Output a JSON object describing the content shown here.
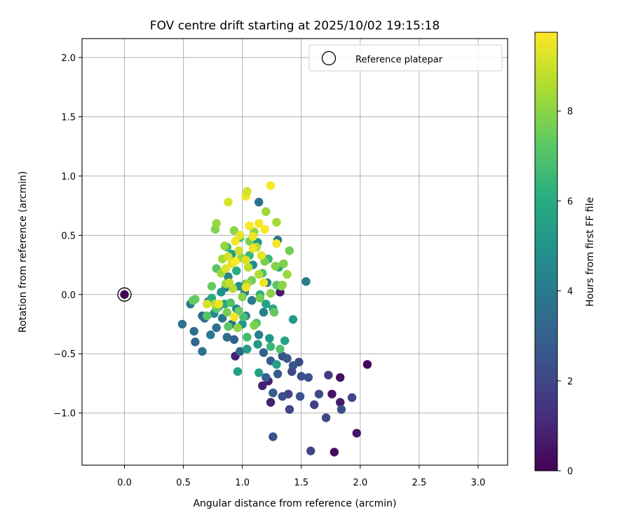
{
  "chart_data": {
    "type": "scatter",
    "title": "FOV centre drift starting at 2025/10/02 19:15:18",
    "xlabel": "Angular distance from reference (arcmin)",
    "ylabel": "Rotation from reference (arcmin)",
    "colorbar_label": "Hours from first FF file",
    "xlim": [
      -0.36,
      3.25
    ],
    "ylim": [
      -1.44,
      2.16
    ],
    "clim": [
      0,
      9.75
    ],
    "xticks": [
      0.0,
      0.5,
      1.0,
      1.5,
      2.0,
      2.5,
      3.0
    ],
    "xtick_labels": [
      "0.0",
      "0.5",
      "1.0",
      "1.5",
      "2.0",
      "2.5",
      "3.0"
    ],
    "yticks": [
      -1.0,
      -0.5,
      0.0,
      0.5,
      1.0,
      1.5,
      2.0
    ],
    "ytick_labels": [
      "−1.0",
      "−0.5",
      "0.0",
      "0.5",
      "1.0",
      "1.5",
      "2.0"
    ],
    "cbar_ticks": [
      0,
      2,
      4,
      6,
      8
    ],
    "cbar_tick_labels": [
      "0",
      "2",
      "4",
      "6",
      "8"
    ],
    "grid": true,
    "legend": {
      "position": "top-right",
      "entries": [
        "Reference platepar"
      ]
    },
    "colormap": "viridis",
    "reference_point": {
      "x": 0.0,
      "y": 0.0,
      "hours": 0.0
    },
    "points": [
      [
        2.06,
        -0.59,
        0.05
      ],
      [
        1.78,
        -1.33,
        0.3
      ],
      [
        1.97,
        -1.17,
        0.5
      ],
      [
        1.83,
        -0.7,
        0.4
      ],
      [
        1.83,
        -0.91,
        0.6
      ],
      [
        1.76,
        -0.84,
        0.5
      ],
      [
        1.22,
        -0.73,
        0.7
      ],
      [
        1.24,
        -0.91,
        0.8
      ],
      [
        1.17,
        -0.77,
        0.9
      ],
      [
        1.32,
        0.02,
        0.6
      ],
      [
        0.94,
        -0.52,
        0.9
      ],
      [
        1.58,
        -1.32,
        1.9
      ],
      [
        1.71,
        -1.04,
        2.1
      ],
      [
        1.93,
        -0.87,
        2.0
      ],
      [
        1.65,
        -0.84,
        2.2
      ],
      [
        1.61,
        -0.93,
        1.8
      ],
      [
        1.73,
        -0.68,
        1.6
      ],
      [
        1.84,
        -0.97,
        2.3
      ],
      [
        1.26,
        -1.2,
        2.4
      ],
      [
        1.4,
        -0.97,
        2.0
      ],
      [
        1.39,
        -0.84,
        1.9
      ],
      [
        1.34,
        -0.86,
        2.3
      ],
      [
        1.5,
        -0.69,
        2.5
      ],
      [
        1.56,
        -0.7,
        2.4
      ],
      [
        1.49,
        -0.86,
        2.5
      ],
      [
        1.42,
        -0.65,
        2.1
      ],
      [
        1.48,
        -0.57,
        2.2
      ],
      [
        1.43,
        -0.6,
        2.6
      ],
      [
        1.34,
        -0.52,
        2.4
      ],
      [
        1.38,
        -0.54,
        2.7
      ],
      [
        1.3,
        -0.67,
        2.8
      ],
      [
        1.26,
        -0.83,
        2.9
      ],
      [
        1.2,
        -0.7,
        3.0
      ],
      [
        1.24,
        -0.56,
        2.8
      ],
      [
        1.18,
        -0.49,
        3.0
      ],
      [
        0.98,
        -0.48,
        3.3
      ],
      [
        0.93,
        -0.38,
        3.1
      ],
      [
        0.87,
        -0.36,
        3.4
      ],
      [
        0.91,
        -0.25,
        3.6
      ],
      [
        0.66,
        -0.48,
        3.6
      ],
      [
        0.49,
        -0.25,
        3.7
      ],
      [
        0.59,
        -0.31,
        3.5
      ],
      [
        0.6,
        -0.4,
        3.3
      ],
      [
        0.66,
        -0.18,
        3.2
      ],
      [
        0.68,
        -0.2,
        3.4
      ],
      [
        0.73,
        -0.34,
        3.9
      ],
      [
        0.78,
        -0.28,
        3.6
      ],
      [
        0.83,
        -0.2,
        3.8
      ],
      [
        0.56,
        -0.08,
        3.9
      ],
      [
        1.14,
        0.78,
        3.6
      ],
      [
        1.54,
        0.11,
        4.1
      ],
      [
        1.3,
        0.46,
        3.9
      ],
      [
        1.08,
        -0.05,
        4.0
      ],
      [
        1.02,
        0.02,
        3.8
      ],
      [
        0.86,
        0.06,
        4.2
      ],
      [
        0.95,
        -0.12,
        4.4
      ],
      [
        1.18,
        -0.15,
        4.3
      ],
      [
        1.14,
        -0.34,
        4.2
      ],
      [
        0.71,
        -0.06,
        4.0
      ],
      [
        0.76,
        -0.16,
        4.5
      ],
      [
        1.03,
        -0.18,
        4.1
      ],
      [
        1.21,
        0.1,
        4.4
      ],
      [
        0.88,
        0.15,
        4.3
      ],
      [
        1.09,
        0.25,
        4.6
      ],
      [
        0.97,
        0.07,
        4.8
      ],
      [
        0.82,
        0.02,
        4.9
      ],
      [
        1.0,
        -0.25,
        5.0
      ],
      [
        1.23,
        -0.37,
        5.1
      ],
      [
        1.13,
        -0.42,
        5.3
      ],
      [
        1.04,
        -0.46,
        5.4
      ],
      [
        0.96,
        -0.65,
        5.6
      ],
      [
        1.14,
        -0.66,
        5.5
      ],
      [
        1.29,
        -0.59,
        5.4
      ],
      [
        1.36,
        -0.39,
        5.5
      ],
      [
        1.43,
        -0.21,
        5.3
      ],
      [
        1.2,
        -0.08,
        5.6
      ],
      [
        0.8,
        -0.1,
        5.2
      ],
      [
        0.91,
        0.34,
        5.3
      ],
      [
        1.13,
        0.44,
        5.2
      ],
      [
        1.26,
        -0.12,
        5.7
      ],
      [
        1.03,
        0.09,
        5.9
      ],
      [
        0.95,
        0.2,
        6.0
      ],
      [
        1.15,
        0.0,
        6.2
      ],
      [
        0.74,
        -0.03,
        6.1
      ],
      [
        0.85,
        -0.08,
        5.8
      ],
      [
        0.92,
        0.27,
        6.3
      ],
      [
        1.06,
        0.33,
        6.5
      ],
      [
        1.22,
        0.3,
        6.4
      ],
      [
        1.31,
        0.23,
        6.0
      ],
      [
        0.98,
        0.48,
        6.6
      ],
      [
        0.87,
        0.4,
        6.4
      ],
      [
        1.04,
        -0.36,
        6.7
      ],
      [
        1.24,
        -0.44,
        6.5
      ],
      [
        1.32,
        -0.46,
        7.0
      ],
      [
        1.01,
        -0.19,
        6.8
      ],
      [
        0.9,
        -0.07,
        7.0
      ],
      [
        0.78,
        0.22,
        7.1
      ],
      [
        1.17,
        0.18,
        6.9
      ],
      [
        1.29,
        0.08,
        7.2
      ],
      [
        1.12,
        -0.24,
        7.1
      ],
      [
        0.88,
        -0.27,
        7.2
      ],
      [
        0.78,
        -0.12,
        7.3
      ],
      [
        0.7,
        -0.18,
        7.1
      ],
      [
        0.74,
        0.07,
        7.4
      ],
      [
        0.97,
        -0.14,
        7.5
      ],
      [
        1.08,
        0.12,
        7.6
      ],
      [
        1.27,
        -0.15,
        7.4
      ],
      [
        1.33,
        0.07,
        7.7
      ],
      [
        1.35,
        0.26,
        7.8
      ],
      [
        1.4,
        0.37,
        7.6
      ],
      [
        1.28,
        0.24,
        7.9
      ],
      [
        1.19,
        0.28,
        7.7
      ],
      [
        1.06,
        0.45,
        7.8
      ],
      [
        0.93,
        0.54,
        8.0
      ],
      [
        0.85,
        0.41,
        8.1
      ],
      [
        0.77,
        0.55,
        7.9
      ],
      [
        0.78,
        0.6,
        8.2
      ],
      [
        1.1,
        0.53,
        8.1
      ],
      [
        1.2,
        0.7,
        8.3
      ],
      [
        1.29,
        0.61,
        8.4
      ],
      [
        0.99,
        0.31,
        8.2
      ],
      [
        0.82,
        0.18,
        8.3
      ],
      [
        1.12,
        0.4,
        8.5
      ],
      [
        0.92,
        0.05,
        8.6
      ],
      [
        1.05,
        0.23,
        8.7
      ],
      [
        0.83,
        0.3,
        8.4
      ],
      [
        1.14,
        0.17,
        8.6
      ],
      [
        1.38,
        0.17,
        8.2
      ],
      [
        1.34,
        0.08,
        8.0
      ],
      [
        1.0,
        -0.02,
        7.9
      ],
      [
        0.87,
        -0.15,
        7.7
      ],
      [
        0.6,
        -0.04,
        7.5
      ],
      [
        0.58,
        -0.05,
        7.3
      ],
      [
        1.15,
        -0.03,
        7.6
      ],
      [
        1.1,
        -0.26,
        7.8
      ],
      [
        1.24,
        0.01,
        8.0
      ],
      [
        0.96,
        -0.28,
        8.1
      ],
      [
        0.86,
        0.09,
        8.3
      ],
      [
        1.04,
        0.09,
        8.4
      ],
      [
        0.77,
        -0.08,
        8.7
      ],
      [
        0.89,
        0.1,
        8.9
      ],
      [
        0.97,
        0.37,
        9.0
      ],
      [
        0.88,
        0.32,
        9.1
      ],
      [
        1.03,
        0.29,
        9.2
      ],
      [
        0.91,
        0.26,
        9.3
      ],
      [
        1.16,
        0.33,
        9.4
      ],
      [
        1.09,
        0.39,
        9.5
      ],
      [
        0.94,
        0.45,
        9.6
      ],
      [
        1.06,
        0.58,
        9.7
      ],
      [
        1.14,
        0.6,
        9.6
      ],
      [
        1.19,
        0.55,
        9.7
      ],
      [
        1.09,
        0.49,
        9.5
      ],
      [
        0.98,
        0.5,
        9.4
      ],
      [
        1.24,
        0.92,
        9.7
      ],
      [
        0.88,
        0.78,
        9.2
      ],
      [
        1.03,
        0.83,
        9.5
      ],
      [
        1.04,
        0.87,
        9.1
      ],
      [
        1.29,
        0.43,
        9.6
      ],
      [
        0.86,
        0.22,
        9.3
      ],
      [
        1.03,
        0.06,
        9.4
      ],
      [
        0.8,
        -0.08,
        9.5
      ],
      [
        0.7,
        -0.08,
        9.2
      ],
      [
        0.93,
        -0.19,
        9.6
      ],
      [
        1.18,
        0.1,
        9.6
      ],
      [
        0.94,
        0.28,
        9.7
      ]
    ]
  }
}
